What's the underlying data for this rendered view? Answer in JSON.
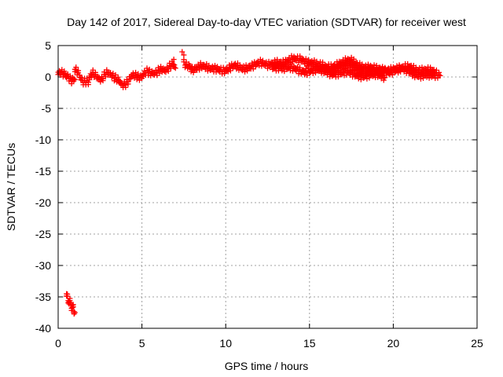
{
  "chart_data": {
    "type": "scatter",
    "title": "Day 142 of 2017, Sidereal Day-to-day VTEC variation (SDTVAR) for receiver west",
    "xlabel": "GPS time / hours",
    "ylabel": "SDTVAR / TECUs",
    "xlim": [
      0,
      25
    ],
    "ylim": [
      -40,
      5
    ],
    "xticks": [
      0,
      5,
      10,
      15,
      20,
      25
    ],
    "yticks": [
      5,
      0,
      -5,
      -10,
      -15,
      -20,
      -25,
      -30,
      -35,
      -40
    ],
    "grid": true,
    "marker": "+",
    "color": "#ff0000",
    "series": [
      {
        "name": "SDTVAR",
        "segments": [
          {
            "x": [
              0.0,
              0.3,
              0.5,
              0.8,
              1.0
            ],
            "y": [
              0.4,
              0.2,
              -0.2,
              -0.5,
              -0.4
            ]
          },
          {
            "x": [
              1.0,
              1.2,
              1.5,
              1.8,
              2.0,
              2.3,
              2.6,
              2.9,
              3.2,
              3.5,
              3.8,
              4.1,
              4.4,
              4.7,
              5.0,
              5.3,
              5.6,
              5.9,
              6.2,
              6.5,
              6.8,
              7.0
            ],
            "y": [
              1.2,
              0.5,
              -0.8,
              -1.2,
              0.2,
              0.0,
              -0.5,
              0.3,
              0.4,
              -0.6,
              -1.5,
              -0.9,
              -0.2,
              0.1,
              -0.1,
              0.5,
              0.7,
              0.4,
              1.0,
              1.2,
              1.6,
              1.4
            ]
          },
          {
            "x": [
              7.5,
              7.8,
              8.0,
              8.5,
              9.0,
              9.5,
              10.0,
              10.5,
              11.0,
              11.5,
              12.0,
              12.5,
              13.0,
              13.5,
              14.0,
              14.5,
              15.0,
              15.5,
              16.0,
              16.5,
              17.0,
              17.5,
              18.0,
              18.5,
              19.0,
              19.5,
              20.0,
              20.5,
              21.0,
              21.5,
              22.0,
              22.5,
              22.8
            ],
            "y": [
              2.0,
              1.8,
              1.2,
              1.5,
              1.0,
              1.3,
              0.9,
              1.4,
              1.2,
              1.7,
              1.9,
              1.6,
              2.4,
              2.0,
              2.5,
              2.8,
              2.2,
              1.6,
              1.4,
              1.8,
              2.0,
              2.3,
              1.8,
              1.3,
              0.9,
              1.0,
              1.2,
              1.0,
              1.4,
              1.1,
              0.8,
              0.4,
              0.2
            ]
          },
          {
            "x": [
              12.8,
              13.5,
              14.5,
              15.5,
              16.5,
              17.5,
              18.5,
              19.5
            ],
            "y": [
              1.6,
              1.2,
              0.9,
              0.8,
              0.5,
              0.3,
              0.1,
              -0.1
            ]
          },
          {
            "x": [
              14.5,
              15.5,
              16.5,
              17.5,
              18.5,
              19.2,
              19.8,
              20.5,
              21.5,
              22.5
            ],
            "y": [
              0.9,
              0.8,
              1.4,
              1.5,
              0.7,
              0.5,
              0.6,
              0.9,
              0.3,
              -0.2
            ]
          },
          {
            "x": [
              0.5,
              0.6,
              0.7,
              0.8,
              0.9,
              1.0
            ],
            "y": [
              -35.0,
              -35.6,
              -36.1,
              -36.6,
              -37.1,
              -37.5
            ]
          }
        ],
        "outliers": {
          "x": [
            6.9,
            7.4,
            7.5
          ],
          "y": [
            2.8,
            4.0,
            3.5
          ]
        }
      }
    ]
  }
}
